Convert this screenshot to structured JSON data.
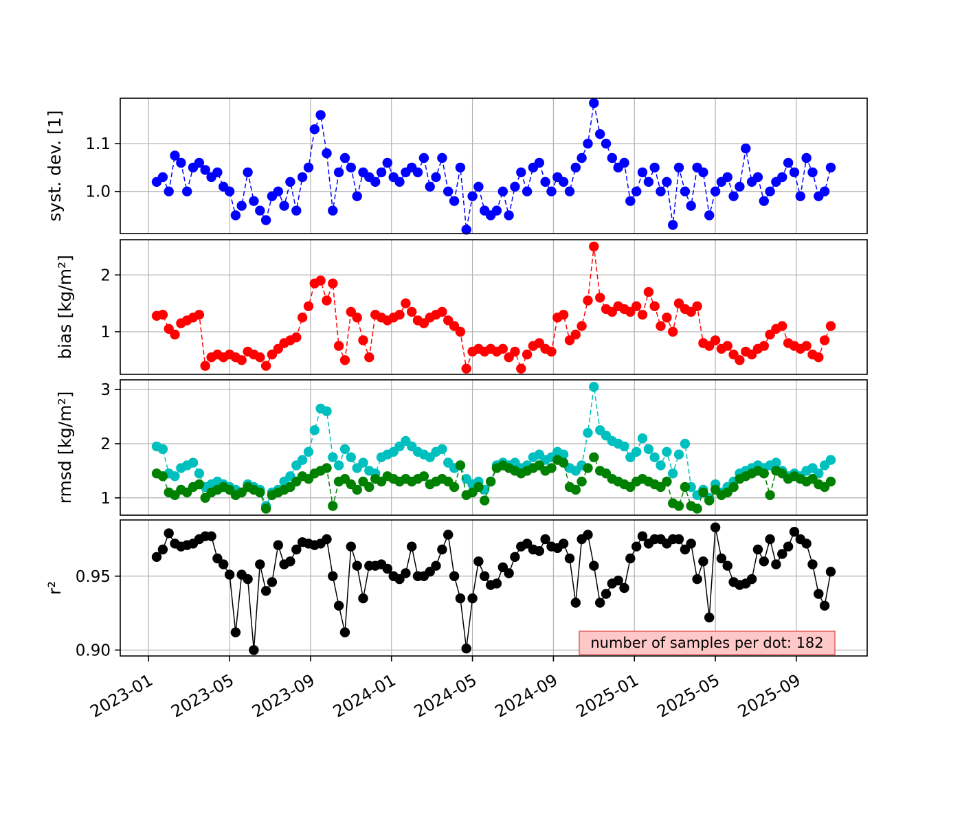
{
  "figure": {
    "background": "#ffffff"
  },
  "chart_data": {
    "type": "line",
    "description": "Four stacked time-series panels of validation statistics with dot markers",
    "grid": true,
    "legend": "none",
    "x_axis": {
      "tick_labels": [
        "2023-01",
        "2023-05",
        "2023-09",
        "2024-01",
        "2024-05",
        "2024-09",
        "2025-01",
        "2025-05",
        "2025-09"
      ],
      "tick_positions_months": [
        0,
        4,
        8,
        12,
        16,
        20,
        24,
        28,
        32
      ],
      "xlim_months": [
        -1.4,
        35.5
      ],
      "sampling": {
        "start_month": 0.4,
        "step_months": 0.3,
        "count": 112
      }
    },
    "annotation": {
      "text": "number of samples per dot: 182",
      "bg": "#ffc8c8",
      "border": "#e06060"
    },
    "panels": [
      {
        "id": "syst-dev",
        "ylabel": "syst. dev. [1]",
        "ylim": [
          0.912,
          1.195
        ],
        "yticks": [
          {
            "value": 1.0,
            "label": "1.0"
          },
          {
            "value": 1.1,
            "label": "1.1"
          }
        ],
        "series": [
          {
            "name": "syst-dev",
            "color": "#0000ff",
            "linestyle": "dashed",
            "values": [
              1.02,
              1.03,
              1.0,
              1.075,
              1.06,
              1.0,
              1.05,
              1.06,
              1.045,
              1.03,
              1.04,
              1.01,
              1.0,
              0.95,
              0.97,
              1.04,
              0.98,
              0.96,
              0.94,
              0.99,
              1.0,
              0.97,
              1.02,
              0.96,
              1.03,
              1.05,
              1.13,
              1.16,
              1.08,
              0.96,
              1.04,
              1.07,
              1.05,
              0.99,
              1.04,
              1.03,
              1.02,
              1.04,
              1.06,
              1.03,
              1.02,
              1.04,
              1.05,
              1.04,
              1.07,
              1.01,
              1.03,
              1.07,
              1.0,
              0.98,
              1.05,
              0.92,
              0.99,
              1.01,
              0.96,
              0.95,
              0.96,
              1.0,
              0.95,
              1.01,
              1.04,
              1.0,
              1.05,
              1.06,
              1.02,
              1.0,
              1.03,
              1.02,
              1.0,
              1.05,
              1.07,
              1.1,
              1.185,
              1.12,
              1.1,
              1.07,
              1.05,
              1.06,
              0.98,
              1.0,
              1.04,
              1.02,
              1.05,
              1.0,
              1.02,
              0.93,
              1.05,
              1.0,
              0.97,
              1.05,
              1.04,
              0.95,
              1.0,
              1.02,
              1.03,
              0.99,
              1.01,
              1.09,
              1.02,
              1.03,
              0.98,
              1.0,
              1.02,
              1.03,
              1.06,
              1.04,
              0.99,
              1.07,
              1.04,
              0.99,
              1.0,
              1.05
            ]
          }
        ]
      },
      {
        "id": "bias",
        "ylabel": "bias [kg/m²]",
        "ylim": [
          0.25,
          2.62
        ],
        "yticks": [
          {
            "value": 1,
            "label": "1"
          },
          {
            "value": 2,
            "label": "2"
          }
        ],
        "series": [
          {
            "name": "bias",
            "color": "#ff0000",
            "linestyle": "dashed",
            "values": [
              1.28,
              1.3,
              1.05,
              0.95,
              1.15,
              1.2,
              1.25,
              1.3,
              0.4,
              0.55,
              0.6,
              0.55,
              0.6,
              0.55,
              0.5,
              0.65,
              0.6,
              0.55,
              0.4,
              0.6,
              0.7,
              0.8,
              0.85,
              0.9,
              1.25,
              1.45,
              1.85,
              1.9,
              1.55,
              1.85,
              0.75,
              0.5,
              1.35,
              1.25,
              0.85,
              0.55,
              1.3,
              1.25,
              1.2,
              1.25,
              1.3,
              1.5,
              1.35,
              1.2,
              1.15,
              1.25,
              1.3,
              1.35,
              1.2,
              1.1,
              1.0,
              0.35,
              0.65,
              0.7,
              0.65,
              0.7,
              0.65,
              0.7,
              0.55,
              0.65,
              0.35,
              0.6,
              0.75,
              0.8,
              0.7,
              0.65,
              1.25,
              1.3,
              0.85,
              0.95,
              1.1,
              1.55,
              2.5,
              1.6,
              1.4,
              1.35,
              1.45,
              1.4,
              1.35,
              1.45,
              1.3,
              1.7,
              1.45,
              1.1,
              1.25,
              1.0,
              1.5,
              1.4,
              1.35,
              1.45,
              0.8,
              0.75,
              0.85,
              0.7,
              0.75,
              0.6,
              0.5,
              0.65,
              0.6,
              0.7,
              0.75,
              0.95,
              1.05,
              1.1,
              0.8,
              0.75,
              0.7,
              0.75,
              0.6,
              0.55,
              0.85,
              1.1
            ]
          }
        ]
      },
      {
        "id": "rmsd",
        "ylabel": "rmsd [kg/m²]",
        "ylim": [
          0.68,
          3.18
        ],
        "yticks": [
          {
            "value": 1,
            "label": "1"
          },
          {
            "value": 2,
            "label": "2"
          },
          {
            "value": 3,
            "label": "3"
          }
        ],
        "series": [
          {
            "name": "rmsd-total",
            "color": "#00bfbf",
            "linestyle": "dashed",
            "values": [
              1.95,
              1.9,
              1.45,
              1.4,
              1.55,
              1.6,
              1.65,
              1.45,
              1.2,
              1.25,
              1.3,
              1.25,
              1.2,
              1.15,
              1.1,
              1.25,
              1.2,
              1.15,
              0.85,
              1.1,
              1.15,
              1.3,
              1.4,
              1.6,
              1.7,
              1.85,
              2.25,
              2.65,
              2.6,
              1.75,
              1.6,
              1.9,
              1.75,
              1.55,
              1.65,
              1.5,
              1.45,
              1.75,
              1.8,
              1.85,
              1.95,
              2.05,
              1.95,
              1.85,
              1.8,
              1.75,
              1.85,
              1.9,
              1.65,
              1.55,
              1.6,
              1.35,
              1.25,
              1.3,
              1.15,
              1.3,
              1.6,
              1.65,
              1.6,
              1.65,
              1.55,
              1.6,
              1.75,
              1.8,
              1.7,
              1.75,
              1.85,
              1.8,
              1.55,
              1.5,
              1.6,
              2.2,
              3.05,
              2.25,
              2.15,
              2.05,
              2.0,
              1.95,
              1.75,
              1.85,
              2.1,
              1.9,
              1.75,
              1.6,
              1.85,
              1.45,
              1.8,
              2.0,
              1.2,
              1.05,
              1.15,
              1.0,
              1.25,
              1.1,
              1.2,
              1.3,
              1.45,
              1.5,
              1.55,
              1.6,
              1.55,
              1.6,
              1.65,
              1.5,
              1.4,
              1.45,
              1.4,
              1.5,
              1.55,
              1.45,
              1.6,
              1.7
            ]
          },
          {
            "name": "rmsd-debiased",
            "color": "#008000",
            "linestyle": "dashed",
            "values": [
              1.45,
              1.4,
              1.1,
              1.05,
              1.15,
              1.1,
              1.2,
              1.25,
              1.0,
              1.1,
              1.15,
              1.2,
              1.15,
              1.05,
              1.1,
              1.2,
              1.15,
              1.1,
              0.8,
              1.05,
              1.1,
              1.15,
              1.2,
              1.3,
              1.4,
              1.35,
              1.45,
              1.5,
              1.55,
              0.85,
              1.3,
              1.35,
              1.25,
              1.15,
              1.3,
              1.2,
              1.35,
              1.3,
              1.4,
              1.35,
              1.3,
              1.35,
              1.3,
              1.35,
              1.4,
              1.25,
              1.3,
              1.35,
              1.3,
              1.2,
              1.6,
              1.05,
              1.1,
              1.2,
              0.95,
              1.3,
              1.55,
              1.6,
              1.55,
              1.5,
              1.45,
              1.5,
              1.55,
              1.6,
              1.5,
              1.55,
              1.7,
              1.65,
              1.2,
              1.15,
              1.3,
              1.55,
              1.75,
              1.5,
              1.45,
              1.35,
              1.3,
              1.25,
              1.2,
              1.3,
              1.35,
              1.3,
              1.25,
              1.2,
              1.3,
              0.9,
              0.85,
              1.2,
              0.85,
              0.8,
              1.1,
              0.95,
              1.15,
              1.05,
              1.1,
              1.2,
              1.35,
              1.4,
              1.45,
              1.5,
              1.45,
              1.05,
              1.5,
              1.45,
              1.35,
              1.4,
              1.35,
              1.3,
              1.35,
              1.25,
              1.2,
              1.3
            ]
          }
        ]
      },
      {
        "id": "r2",
        "ylabel": "r²",
        "ylim": [
          0.896,
          0.988
        ],
        "yticks": [
          {
            "value": 0.9,
            "label": "0.90"
          },
          {
            "value": 0.95,
            "label": "0.95"
          }
        ],
        "series": [
          {
            "name": "r-squared",
            "color": "#000000",
            "linestyle": "solid",
            "values": [
              0.963,
              0.968,
              0.979,
              0.972,
              0.97,
              0.971,
              0.972,
              0.975,
              0.977,
              0.977,
              0.962,
              0.958,
              0.951,
              0.912,
              0.951,
              0.948,
              0.9,
              0.958,
              0.94,
              0.946,
              0.971,
              0.958,
              0.96,
              0.968,
              0.973,
              0.972,
              0.971,
              0.972,
              0.975,
              0.95,
              0.93,
              0.912,
              0.97,
              0.957,
              0.935,
              0.957,
              0.957,
              0.958,
              0.955,
              0.95,
              0.948,
              0.952,
              0.97,
              0.95,
              0.95,
              0.953,
              0.957,
              0.968,
              0.978,
              0.95,
              0.935,
              0.901,
              0.935,
              0.96,
              0.95,
              0.944,
              0.945,
              0.956,
              0.952,
              0.963,
              0.97,
              0.972,
              0.968,
              0.967,
              0.975,
              0.97,
              0.969,
              0.972,
              0.962,
              0.932,
              0.975,
              0.978,
              0.957,
              0.932,
              0.938,
              0.945,
              0.947,
              0.942,
              0.962,
              0.97,
              0.977,
              0.972,
              0.975,
              0.975,
              0.972,
              0.975,
              0.975,
              0.968,
              0.972,
              0.948,
              0.96,
              0.922,
              0.983,
              0.962,
              0.957,
              0.946,
              0.944,
              0.945,
              0.948,
              0.968,
              0.96,
              0.975,
              0.958,
              0.965,
              0.97,
              0.98,
              0.975,
              0.972,
              0.958,
              0.938,
              0.93,
              0.953
            ]
          }
        ]
      }
    ]
  }
}
